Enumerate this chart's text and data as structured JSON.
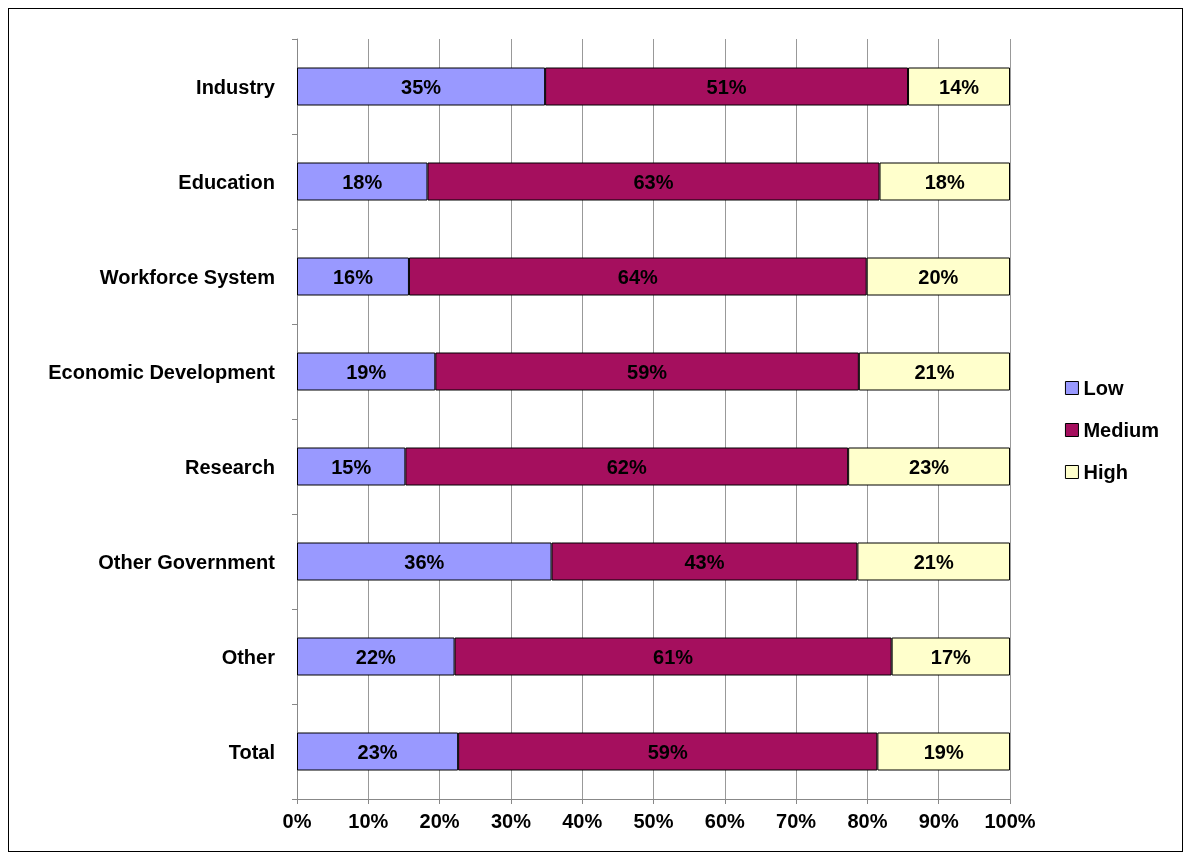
{
  "chart_data": {
    "type": "bar",
    "orientation": "horizontal",
    "stacked": true,
    "categories": [
      "Industry",
      "Education",
      "Workforce System",
      "Economic Development",
      "Research",
      "Other Government",
      "Other",
      "Total"
    ],
    "series": [
      {
        "name": "Low",
        "color": "#9999ff",
        "values": [
          34.8,
          18.3,
          15.7,
          19.4,
          15.2,
          35.7,
          22.1,
          22.6
        ],
        "value_labels": [
          "35%",
          "18%",
          "16%",
          "19%",
          "15%",
          "36%",
          "22%",
          "23%"
        ]
      },
      {
        "name": "Medium",
        "color": "#a50f5e",
        "values": [
          50.9,
          63.4,
          64.2,
          59.4,
          62.1,
          42.9,
          61.3,
          58.8
        ],
        "value_labels": [
          "51%",
          "63%",
          "64%",
          "59%",
          "62%",
          "43%",
          "61%",
          "59%"
        ]
      },
      {
        "name": "High",
        "color": "#ffffcc",
        "values": [
          14.3,
          18.3,
          20.1,
          21.2,
          22.7,
          21.4,
          16.6,
          18.6
        ],
        "value_labels": [
          "14%",
          "18%",
          "20%",
          "21%",
          "23%",
          "21%",
          "17%",
          "19%"
        ]
      }
    ],
    "xlim": [
      0,
      100
    ],
    "xticks": [
      {
        "value": 0,
        "label": "0%"
      },
      {
        "value": 10,
        "label": "10%"
      },
      {
        "value": 20,
        "label": "20%"
      },
      {
        "value": 30,
        "label": "30%"
      },
      {
        "value": 40,
        "label": "40%"
      },
      {
        "value": 50,
        "label": "50%"
      },
      {
        "value": 60,
        "label": "60%"
      },
      {
        "value": 70,
        "label": "70%"
      },
      {
        "value": 80,
        "label": "80%"
      },
      {
        "value": 90,
        "label": "90%"
      },
      {
        "value": 100,
        "label": "100%"
      }
    ],
    "grid": "x",
    "legend": "right"
  }
}
